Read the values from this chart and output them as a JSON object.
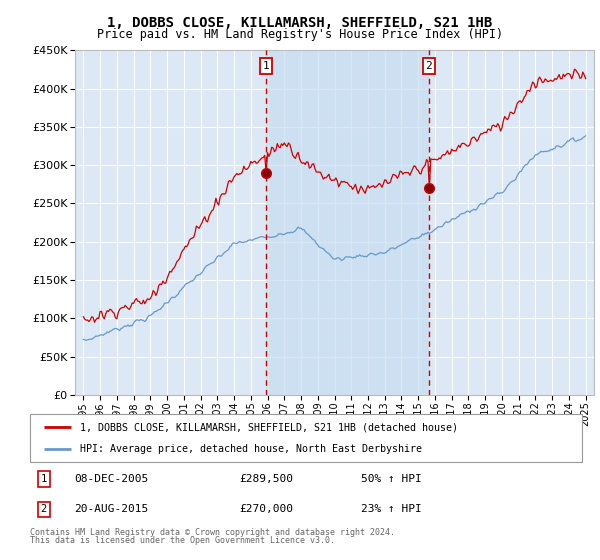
{
  "title_line1": "1, DOBBS CLOSE, KILLAMARSH, SHEFFIELD, S21 1HB",
  "title_line2": "Price paid vs. HM Land Registry's House Price Index (HPI)",
  "background_color": "#ffffff",
  "plot_bg_color": "#dce8f5",
  "grid_color": "#ffffff",
  "shade_color": "#c8ddf0",
  "marker1_date_label": "08-DEC-2005",
  "marker1_price": "£289,500",
  "marker1_hpi": "50% ↑ HPI",
  "marker1_x": 2005.92,
  "marker1_y": 289500,
  "marker2_date_label": "20-AUG-2015",
  "marker2_price": "£270,000",
  "marker2_hpi": "23% ↑ HPI",
  "marker2_x": 2015.63,
  "marker2_y": 270000,
  "legend_line1": "1, DOBBS CLOSE, KILLAMARSH, SHEFFIELD, S21 1HB (detached house)",
  "legend_line2": "HPI: Average price, detached house, North East Derbyshire",
  "footer_line1": "Contains HM Land Registry data © Crown copyright and database right 2024.",
  "footer_line2": "This data is licensed under the Open Government Licence v3.0.",
  "red_color": "#cc0000",
  "blue_color": "#6699cc",
  "ylim_min": 0,
  "ylim_max": 450000,
  "xlim_min": 1994.5,
  "xlim_max": 2025.5,
  "yticks": [
    0,
    50000,
    100000,
    150000,
    200000,
    250000,
    300000,
    350000,
    400000,
    450000
  ],
  "xticks": [
    1995,
    1996,
    1997,
    1998,
    1999,
    2000,
    2001,
    2002,
    2003,
    2004,
    2005,
    2006,
    2007,
    2008,
    2009,
    2010,
    2011,
    2012,
    2013,
    2014,
    2015,
    2016,
    2017,
    2018,
    2019,
    2020,
    2021,
    2022,
    2023,
    2024,
    2025
  ]
}
